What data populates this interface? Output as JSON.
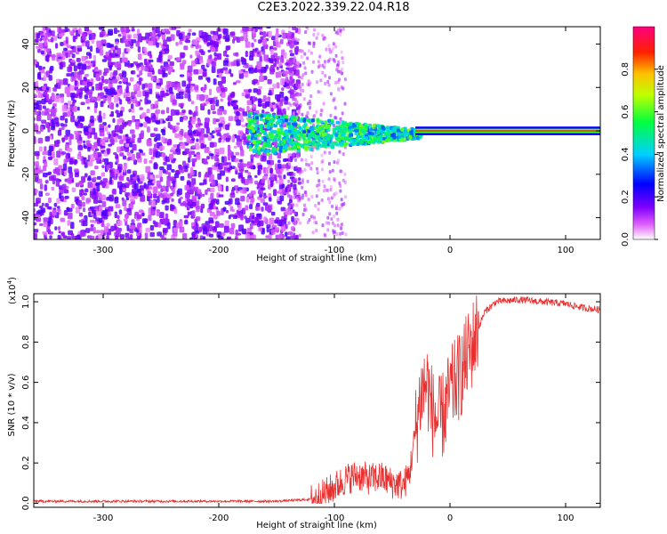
{
  "title": "C2E3.2022.339.22.04.R18",
  "chart_data": [
    {
      "type": "heatmap",
      "xlabel": "Height of straight line (km)",
      "ylabel": "Frequency (Hz)",
      "xlim": [
        -360,
        130
      ],
      "ylim": [
        -50,
        48
      ],
      "xticks": [
        -300,
        -200,
        -100,
        0,
        100
      ],
      "yticks": [
        -40,
        -20,
        0,
        20,
        40
      ],
      "colorbar": {
        "label": "Normalized spectral amplitude",
        "range": [
          0.0,
          1.0
        ],
        "ticks": [
          "0.0",
          "0.2",
          "0.4",
          "0.6",
          "0.8"
        ],
        "tick_values": [
          0.0,
          0.2,
          0.4,
          0.6,
          0.8
        ],
        "colormap": "rainbow (white-magenta-purple-blue-cyan-green-yellow-red-magenta)"
      },
      "regions": [
        {
          "x_range": [
            -360,
            -130
          ],
          "freq_range": [
            -50,
            48
          ],
          "amplitude": "0.05-0.2 (noise)"
        },
        {
          "x_range": [
            -175,
            -30
          ],
          "freq_center": 0,
          "freq_halfwidth": 8,
          "amplitude": "0.4-0.6"
        },
        {
          "x_range": [
            -30,
            130
          ],
          "freq_center": 0,
          "freq_halfwidth": 1,
          "amplitude": "0.9-1.0"
        }
      ]
    },
    {
      "type": "line",
      "xlabel": "Height of straight line (km)",
      "ylabel": "SNR (10 * v/v)",
      "scale_label": "(x10",
      "scale_exp": "4",
      "scale_close": ")",
      "xlim": [
        -360,
        130
      ],
      "ylim": [
        -0.02,
        1.04
      ],
      "xticks": [
        -300,
        -200,
        -100,
        0,
        100
      ],
      "yticks": [
        "0.0",
        "0.2",
        "0.4",
        "0.6",
        "0.8",
        "1.0"
      ],
      "ytick_values": [
        0.0,
        0.2,
        0.4,
        0.6,
        0.8,
        1.0
      ],
      "color": "#e83030",
      "series": [
        {
          "x": [
            -360,
            -300,
            -200,
            -150,
            -120,
            -110,
            -100,
            -90,
            -80,
            -70,
            -60,
            -50,
            -40,
            -35,
            -30,
            -25,
            -20,
            -15,
            -10,
            -5,
            0,
            10,
            20,
            30,
            40,
            60,
            80,
            100,
            115,
            130
          ],
          "values": [
            0.01,
            0.01,
            0.01,
            0.01,
            0.02,
            0.04,
            0.08,
            0.12,
            0.14,
            0.12,
            0.13,
            0.1,
            0.09,
            0.15,
            0.35,
            0.55,
            0.6,
            0.45,
            0.4,
            0.45,
            0.55,
            0.65,
            0.8,
            0.95,
            1.0,
            1.01,
            1.0,
            0.99,
            0.97,
            0.96
          ]
        }
      ]
    }
  ]
}
